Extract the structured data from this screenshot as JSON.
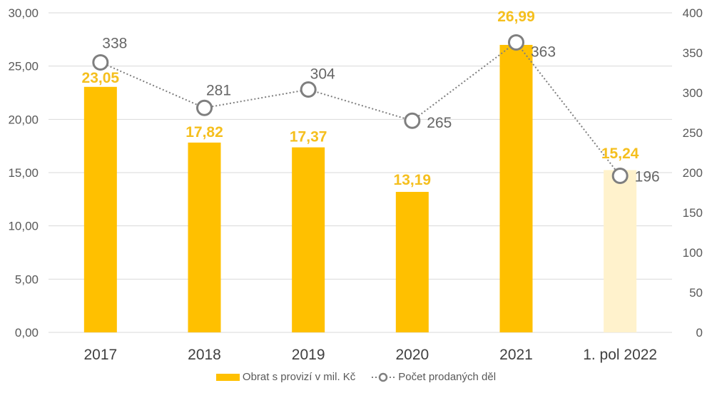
{
  "chart_data": {
    "type": "bar",
    "title": "",
    "categories": [
      "2017",
      "2018",
      "2019",
      "2020",
      "2021",
      "1. pol 2022"
    ],
    "series": [
      {
        "name": "Obrat s provizí v mil. Kč",
        "type": "bar",
        "axis": "left",
        "values": [
          23.05,
          17.82,
          17.37,
          13.19,
          26.99,
          15.24
        ],
        "labels": [
          "23,05",
          "17,82",
          "17,37",
          "13,19",
          "26,99",
          "15,24"
        ],
        "color": "#ffc000",
        "highlight_last_color": "#fff2cc"
      },
      {
        "name": "Počet prodaných děl",
        "type": "line",
        "axis": "right",
        "values": [
          338,
          281,
          304,
          265,
          363,
          196
        ],
        "labels": [
          "338",
          "281",
          "304",
          "265",
          "363",
          "196"
        ],
        "color": "#7f7f7f",
        "line_style": "dotted",
        "marker": "hollow-circle"
      }
    ],
    "ylim_left": [
      0,
      30
    ],
    "yticks_left": [
      "0,00",
      "5,00",
      "10,00",
      "15,00",
      "20,00",
      "25,00",
      "30,00"
    ],
    "ylim_right": [
      0,
      400
    ],
    "yticks_right": [
      "0",
      "50",
      "100",
      "150",
      "200",
      "250",
      "300",
      "350",
      "400"
    ],
    "xlabel": "",
    "ylabel": "",
    "grid": true,
    "legend_position": "bottom"
  },
  "legend": {
    "bar_label": "Obrat s provizí v mil. Kč",
    "line_label": "Počet prodaných děl"
  }
}
